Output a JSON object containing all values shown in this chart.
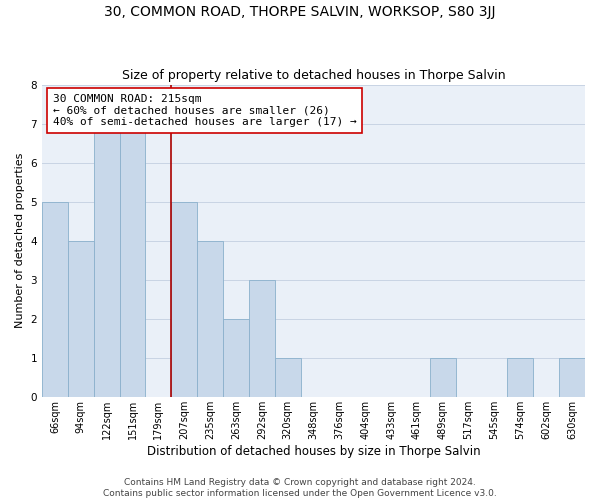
{
  "title": "30, COMMON ROAD, THORPE SALVIN, WORKSOP, S80 3JJ",
  "subtitle": "Size of property relative to detached houses in Thorpe Salvin",
  "xlabel": "Distribution of detached houses by size in Thorpe Salvin",
  "ylabel": "Number of detached properties",
  "bar_labels": [
    "66sqm",
    "94sqm",
    "122sqm",
    "151sqm",
    "179sqm",
    "207sqm",
    "235sqm",
    "263sqm",
    "292sqm",
    "320sqm",
    "348sqm",
    "376sqm",
    "404sqm",
    "433sqm",
    "461sqm",
    "489sqm",
    "517sqm",
    "545sqm",
    "574sqm",
    "602sqm",
    "630sqm"
  ],
  "bar_values": [
    5,
    4,
    7,
    7,
    0,
    5,
    4,
    2,
    3,
    1,
    0,
    0,
    0,
    0,
    0,
    1,
    0,
    0,
    1,
    0,
    1
  ],
  "bar_color": "#c8d8ea",
  "bar_edge_color": "#8ab0cc",
  "vline_x": 4.5,
  "vline_color": "#aa0000",
  "annotation_text": "30 COMMON ROAD: 215sqm\n← 60% of detached houses are smaller (26)\n40% of semi-detached houses are larger (17) →",
  "ylim": [
    0,
    8
  ],
  "yticks": [
    0,
    1,
    2,
    3,
    4,
    5,
    6,
    7,
    8
  ],
  "grid_color": "#c8d4e4",
  "background_color": "#eaf0f8",
  "footer_line1": "Contains HM Land Registry data © Crown copyright and database right 2024.",
  "footer_line2": "Contains public sector information licensed under the Open Government Licence v3.0.",
  "title_fontsize": 10,
  "subtitle_fontsize": 9,
  "xlabel_fontsize": 8.5,
  "ylabel_fontsize": 8,
  "annotation_fontsize": 8,
  "footer_fontsize": 6.5
}
